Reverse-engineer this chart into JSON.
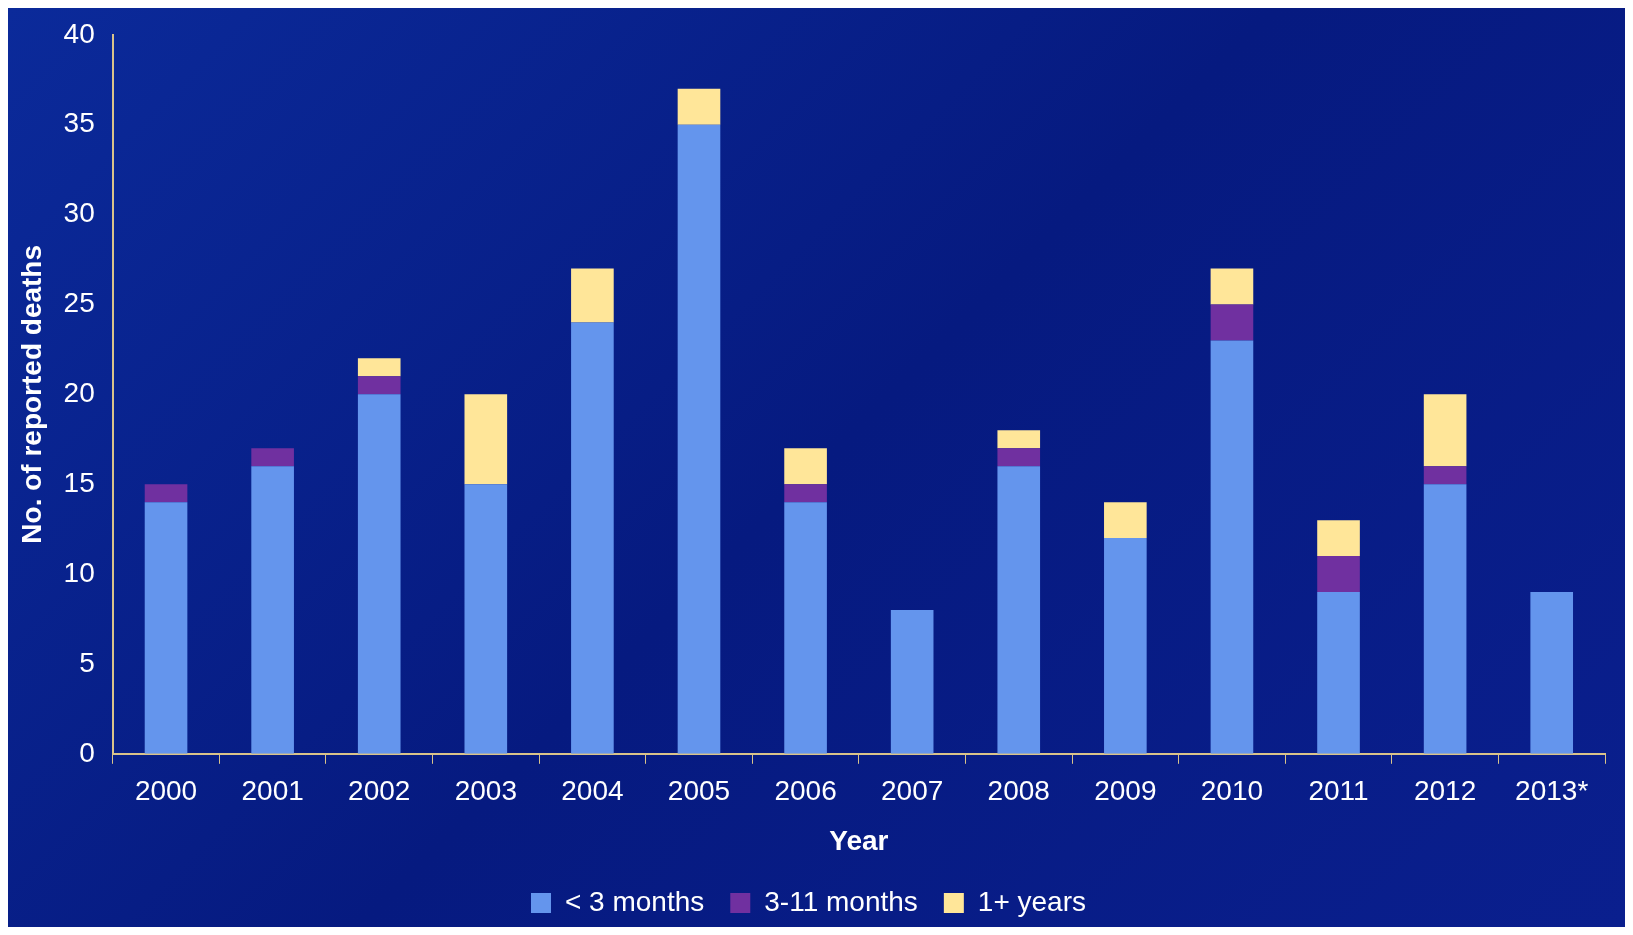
{
  "chart_data": {
    "type": "bar",
    "stacked": true,
    "xlabel": "Year",
    "ylabel": "No. of reported deaths",
    "categories": [
      "2000",
      "2001",
      "2002",
      "2003",
      "2004",
      "2005",
      "2006",
      "2007",
      "2008",
      "2009",
      "2010",
      "2011",
      "2012",
      "2013*"
    ],
    "series": [
      {
        "name": "< 3 months",
        "color": "#6495ed",
        "values": [
          14,
          16,
          20,
          15,
          24,
          35,
          14,
          8,
          16,
          12,
          23,
          9,
          15,
          9
        ]
      },
      {
        "name": "3-11 months",
        "color": "#7030a0",
        "values": [
          1,
          1,
          1,
          0,
          0,
          0,
          1,
          0,
          1,
          0,
          2,
          2,
          1,
          0
        ]
      },
      {
        "name": "1+ years",
        "color": "#ffe699",
        "values": [
          0,
          0,
          1,
          5,
          3,
          2,
          2,
          0,
          1,
          2,
          2,
          2,
          4,
          0
        ]
      }
    ],
    "ylim": [
      0,
      40
    ],
    "yticks": [
      0,
      5,
      10,
      15,
      20,
      25,
      30,
      35,
      40
    ],
    "grid": false,
    "legend": "bottom"
  }
}
